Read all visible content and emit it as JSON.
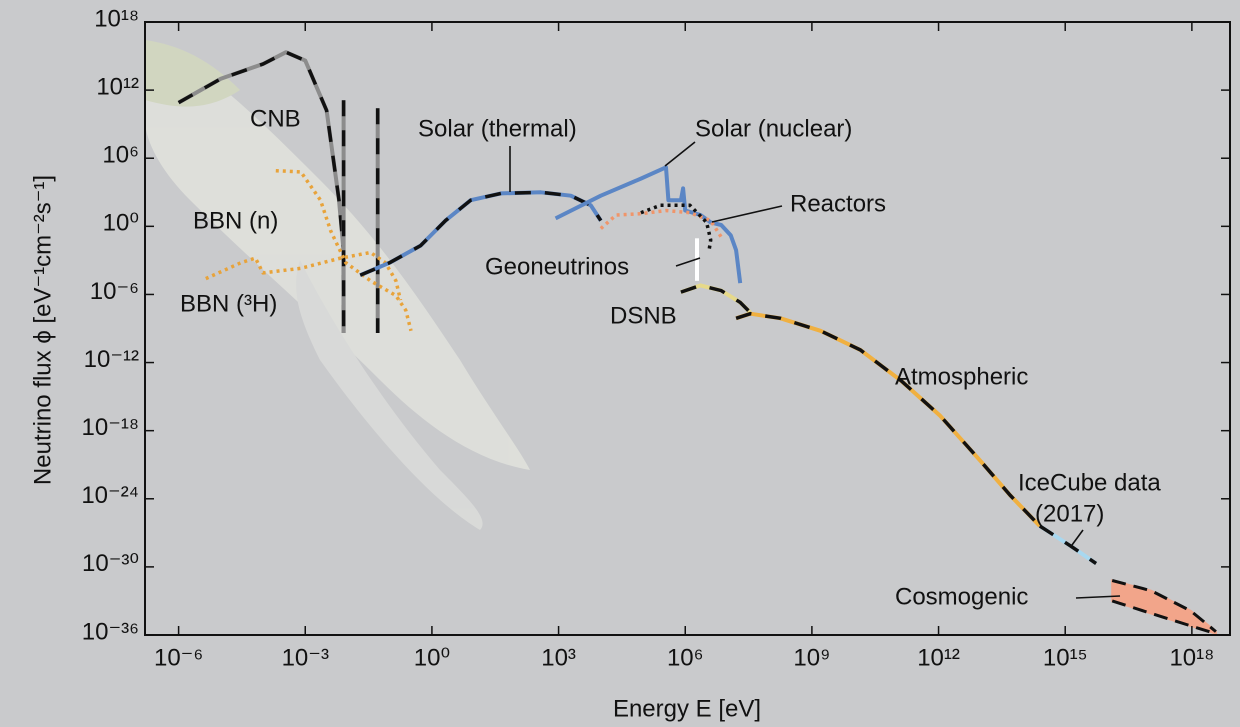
{
  "chart_data": {
    "type": "line",
    "xlabel": "Energy E [eV]",
    "ylabel": "Neutrino flux ϕ [eV⁻¹cm⁻²s⁻¹]",
    "log_x": true,
    "log_y": true,
    "xlim": [
      1.6e-07,
      8e+18
    ],
    "ylim": [
      1e-36,
      1e+18
    ],
    "xticks": [
      {
        "value": 1e-06,
        "label": "10⁻⁶"
      },
      {
        "value": 0.001,
        "label": "10⁻³"
      },
      {
        "value": 1,
        "label": "10⁰"
      },
      {
        "value": 1000.0,
        "label": "10³"
      },
      {
        "value": 1000000.0,
        "label": "10⁶"
      },
      {
        "value": 1000000000.0,
        "label": "10⁹"
      },
      {
        "value": 1000000000000.0,
        "label": "10¹²"
      },
      {
        "value": 1000000000000000.0,
        "label": "10¹⁵"
      },
      {
        "value": 1e+18,
        "label": "10¹⁸"
      }
    ],
    "yticks": [
      {
        "value": 1e+18,
        "label": "10¹⁸"
      },
      {
        "value": 1000000000000.0,
        "label": "10¹²"
      },
      {
        "value": 1000000.0,
        "label": "10⁶"
      },
      {
        "value": 1,
        "label": "10⁰"
      },
      {
        "value": 1e-06,
        "label": "10⁻⁶"
      },
      {
        "value": 1e-12,
        "label": "10⁻¹²"
      },
      {
        "value": 1e-18,
        "label": "10⁻¹⁸"
      },
      {
        "value": 1e-24,
        "label": "10⁻²⁴"
      },
      {
        "value": 1e-30,
        "label": "10⁻³⁰"
      },
      {
        "value": 1e-36,
        "label": "10⁻³⁶"
      }
    ],
    "series": [
      {
        "color": "#8c8c8c",
        "style": "solid",
        "overlay": true,
        "x": [
          1e-06,
          1e-05,
          0.0001,
          0.00035,
          0.001,
          0.0032,
          0.0063,
          0.008,
          0.0081
        ],
        "values": [
          80000000000.0,
          10000000000000.0,
          200000000000000.0,
          2200000000000000.0,
          400000000000000.0,
          16000000000.0,
          200,
          0.01,
          4e-10
        ]
      },
      {
        "color": "#8c8c8c",
        "style": "solid",
        "overlay": true,
        "x": [
          0.0081,
          0.0081
        ],
        "values": [
          130000000000.0,
          4e-10
        ]
      },
      {
        "color": "#8c8c8c",
        "style": "solid",
        "overlay": true,
        "x": [
          0.052,
          0.052
        ],
        "values": [
          25000000000.0,
          4e-10
        ]
      },
      {
        "color": "#e8a33a",
        "style": "dotted",
        "overlay": false,
        "x": [
          0.0002,
          0.00079,
          0.0023,
          0.004,
          0.0091,
          0.035,
          0.14,
          0.24,
          0.32
        ],
        "values": [
          79000.0,
          63000.0,
          200,
          0.4,
          0.00063,
          1.6e-05,
          7.9e-07,
          4e-08,
          6.3e-10
        ]
      },
      {
        "color": "#e8a33a",
        "style": "dotted",
        "overlay": false,
        "x": [
          4.4e-06,
          3e-05,
          6.6e-05,
          0.0001,
          0.00079,
          0.0069,
          0.035,
          0.079,
          0.14,
          0.18
        ],
        "values": [
          2.5e-05,
          0.00063,
          0.0016,
          7.9e-05,
          0.0002,
          0.0016,
          0.005,
          0.00063,
          1.6e-05,
          3.2e-07
        ]
      },
      {
        "color": "#5b86c5",
        "style": "solid",
        "overlay": true,
        "x": [
          0.02,
          0.1,
          0.54,
          2.1,
          8.3,
          43,
          380,
          1950,
          5800,
          10000
        ],
        "values": [
          5e-05,
          0.00063,
          0.02,
          3.2,
          200,
          790,
          1000,
          500,
          71,
          3.2
        ]
      },
      {
        "color": "#5b86c5",
        "style": "solid",
        "overlay": false,
        "x": [
          850,
          10000.0,
          89000.0,
          350000.0,
          400000.0,
          790000.0,
          890000.0,
          1000000.0,
          2300000.0,
          4000000.0,
          7100000.0,
          12000000.0,
          16000000.0,
          20000000.0
        ],
        "values": [
          5,
          500,
          16000.0,
          160000.0,
          200,
          200,
          2200,
          25,
          10,
          2.2,
          1.3,
          0.16,
          0.0079,
          1e-05
        ]
      },
      {
        "color": "#f0956a",
        "style": "dotted",
        "overlay": false,
        "x": [
          10000.0,
          23000.0,
          89000.0,
          350000.0,
          1300000.0,
          4000000.0,
          7900000.0
        ],
        "values": [
          0.63,
          10,
          13,
          25,
          16,
          3.2,
          0.063
        ]
      },
      {
        "color": "#111111",
        "style": "dotted",
        "overlay": false,
        "x": [
          89000.0,
          260000.0,
          1300000.0,
          3200000.0,
          4000000.0,
          3600000.0
        ],
        "values": [
          16,
          71,
          71,
          2.2,
          0.063,
          0.005
        ]
      },
      {
        "color": "#ffffff",
        "style": "solid",
        "overlay": false,
        "x": [
          1900000.0,
          1900000.0
        ],
        "values": [
          0.089,
          1.6e-05
        ]
      },
      {
        "color": "#e6d98a",
        "style": "solid",
        "overlay": true,
        "x": [
          790000.0,
          2300000.0,
          7100000.0,
          20000000.0,
          35000000.0
        ],
        "values": [
          1.6e-06,
          6.3e-06,
          2.2e-06,
          2e-07,
          2.5e-08
        ]
      },
      {
        "color": "#f0b040",
        "style": "solid",
        "overlay": true,
        "x": [
          16000000.0,
          35000000.0,
          180000000.0,
          1600000000.0,
          14000000000.0,
          130000000000.0,
          1100000000000.0,
          10000000000000.0,
          50000000000000.0,
          250000000000000.0
        ],
        "values": [
          7.9e-09,
          2e-08,
          7.9e-09,
          6.3e-10,
          1.3e-11,
          2.5e-14,
          2e-17,
          2e-21,
          2e-24,
          4e-27
        ]
      },
      {
        "color": "#a8d8f0",
        "style": "solid",
        "overlay": true,
        "x": [
          250000000000000.0,
          1400000000000000.0,
          5400000000000000.0
        ],
        "values": [
          4e-27,
          6.3e-29,
          2e-30
        ]
      },
      {
        "color": "#f2a58a",
        "style": "band",
        "overlay": true,
        "x": [
          1.3e+16,
          1.1e+17,
          9.5e+17,
          3.7e+18
        ],
        "values": [
          6.3e-32,
          7.9e-33,
          1.3e-34,
          2e-36
        ],
        "lower": [
          1e-33,
          7.9e-35,
          6.3e-36,
          1.3e-36
        ]
      }
    ],
    "annotations": [
      "CNB",
      "BBN (n)",
      "BBN (³H)",
      "Solar (thermal)",
      "Solar (nuclear)",
      "Reactors",
      "Geoneutrinos",
      "DSNB",
      "Atmospheric",
      "IceCube data",
      "(2017)",
      "Cosmogenic"
    ]
  }
}
